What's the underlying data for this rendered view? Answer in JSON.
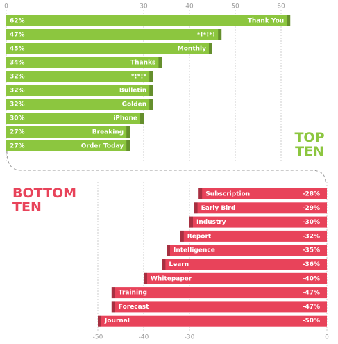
{
  "chart_data": [
    {
      "type": "bar",
      "title": "TOP TEN",
      "categories": [
        "Thank You",
        "*!*!*!",
        "Monthly",
        "Thanks",
        "*!*!*",
        "Bulletin",
        "Golden",
        "iPhone",
        "Breaking",
        "Order Today"
      ],
      "values": [
        62,
        47,
        45,
        34,
        32,
        32,
        32,
        30,
        27,
        27
      ],
      "value_labels": [
        "62%",
        "47%",
        "45%",
        "34%",
        "32%",
        "32%",
        "32%",
        "30%",
        "27%",
        "27%"
      ],
      "color": "#8cc63f",
      "xlim": [
        0,
        70
      ],
      "xticks": [
        0,
        30,
        40,
        50,
        60
      ],
      "grid": true
    },
    {
      "type": "bar",
      "title": "BOTTOM TEN",
      "categories": [
        "Subscription",
        "Early Bird",
        "Industry",
        "Report",
        "Intelligence",
        "Learn",
        "Whitepaper",
        "Training",
        "Forecast",
        "Journal"
      ],
      "values": [
        -28,
        -29,
        -30,
        -32,
        -35,
        -36,
        -40,
        -47,
        -47,
        -50
      ],
      "value_labels": [
        "-28%",
        "-29%",
        "-30%",
        "-32%",
        "-35%",
        "-36%",
        "-40%",
        "-47%",
        "-47%",
        "-50%"
      ],
      "color": "#e8435a",
      "xlim": [
        -70,
        0
      ],
      "xticks": [
        -50,
        -40,
        -30,
        0
      ],
      "grid": true
    }
  ]
}
